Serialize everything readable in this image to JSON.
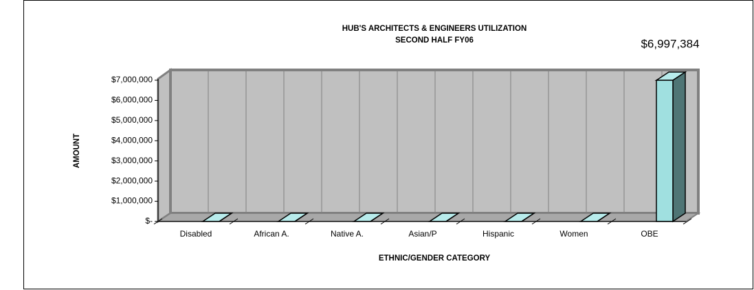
{
  "chart_data": {
    "type": "bar3d",
    "title": "HUB'S ARCHITECTS & ENGINEERS UTILIZATION",
    "subtitle": "SECOND HALF FY06",
    "x_label": "ETHNIC/GENDER CATEGORY",
    "y_label": "AMOUNT",
    "categories": [
      "Disabled",
      "African A.",
      "Native A.",
      "Asian/P",
      "Hispanic",
      "Women",
      "OBE"
    ],
    "values": [
      0,
      0,
      0,
      0,
      0,
      0,
      6997384
    ],
    "value_labels": [
      null,
      null,
      null,
      null,
      null,
      null,
      "$6,997,384"
    ],
    "color": "#a0e0e0",
    "ylim": [
      0,
      7000000
    ],
    "yticks": [
      {
        "value": 0,
        "label": "$-"
      },
      {
        "value": 1000000,
        "label": "$1,000,000"
      },
      {
        "value": 2000000,
        "label": "$2,000,000"
      },
      {
        "value": 3000000,
        "label": "$3,000,000"
      },
      {
        "value": 4000000,
        "label": "$4,000,000"
      },
      {
        "value": 5000000,
        "label": "$5,000,000"
      },
      {
        "value": 6000000,
        "label": "$6,000,000"
      },
      {
        "value": 7000000,
        "label": "$7,000,000"
      }
    ],
    "grid": false
  }
}
